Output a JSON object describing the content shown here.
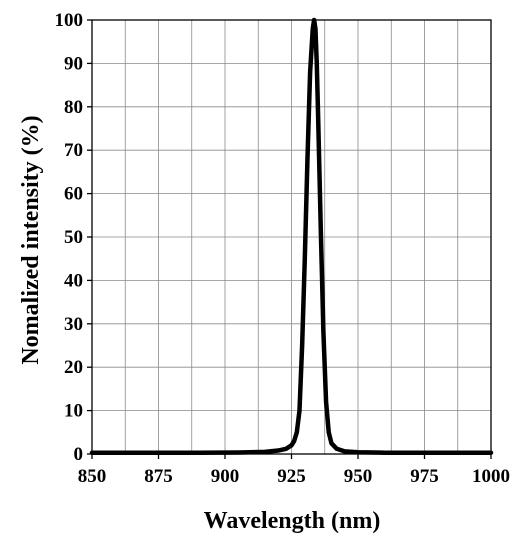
{
  "chart_data": {
    "type": "line",
    "title": "",
    "xlabel": "Wavelength (nm)",
    "ylabel": "Nomalized intensity (%)",
    "xlim": [
      850,
      1000
    ],
    "ylim": [
      0,
      100
    ],
    "grid": true,
    "legend": "none",
    "x_ticks": [
      850,
      875,
      900,
      925,
      950,
      975,
      1000
    ],
    "y_ticks": [
      0,
      10,
      20,
      30,
      40,
      50,
      60,
      70,
      80,
      90,
      100
    ],
    "x_tick_labels": [
      "850",
      "875",
      "900",
      "925",
      "950",
      "975",
      "1000"
    ],
    "y_tick_labels": [
      "0",
      "10",
      "20",
      "30",
      "40",
      "50",
      "60",
      "70",
      "80",
      "90",
      "100"
    ],
    "x_minor_ticks": [
      862.5,
      887.5,
      912.5,
      937.5,
      962.5,
      987.5
    ],
    "line_color": "#000000",
    "series": [
      {
        "x": [
          850,
          870,
          890,
          905,
          915,
          920,
          923,
          925,
          926,
          927,
          928,
          929,
          930,
          931,
          932,
          933,
          933.5,
          934,
          934.5,
          935,
          936,
          937,
          938,
          939,
          940,
          942,
          945,
          950,
          960,
          975,
          1000
        ],
        "y": [
          0.3,
          0.3,
          0.3,
          0.35,
          0.5,
          0.8,
          1.2,
          2,
          3,
          5,
          10,
          25,
          45,
          68,
          88,
          98,
          100,
          98,
          90,
          78,
          52,
          28,
          12,
          5,
          2.5,
          1.2,
          0.6,
          0.4,
          0.3,
          0.3,
          0.3
        ]
      }
    ]
  }
}
